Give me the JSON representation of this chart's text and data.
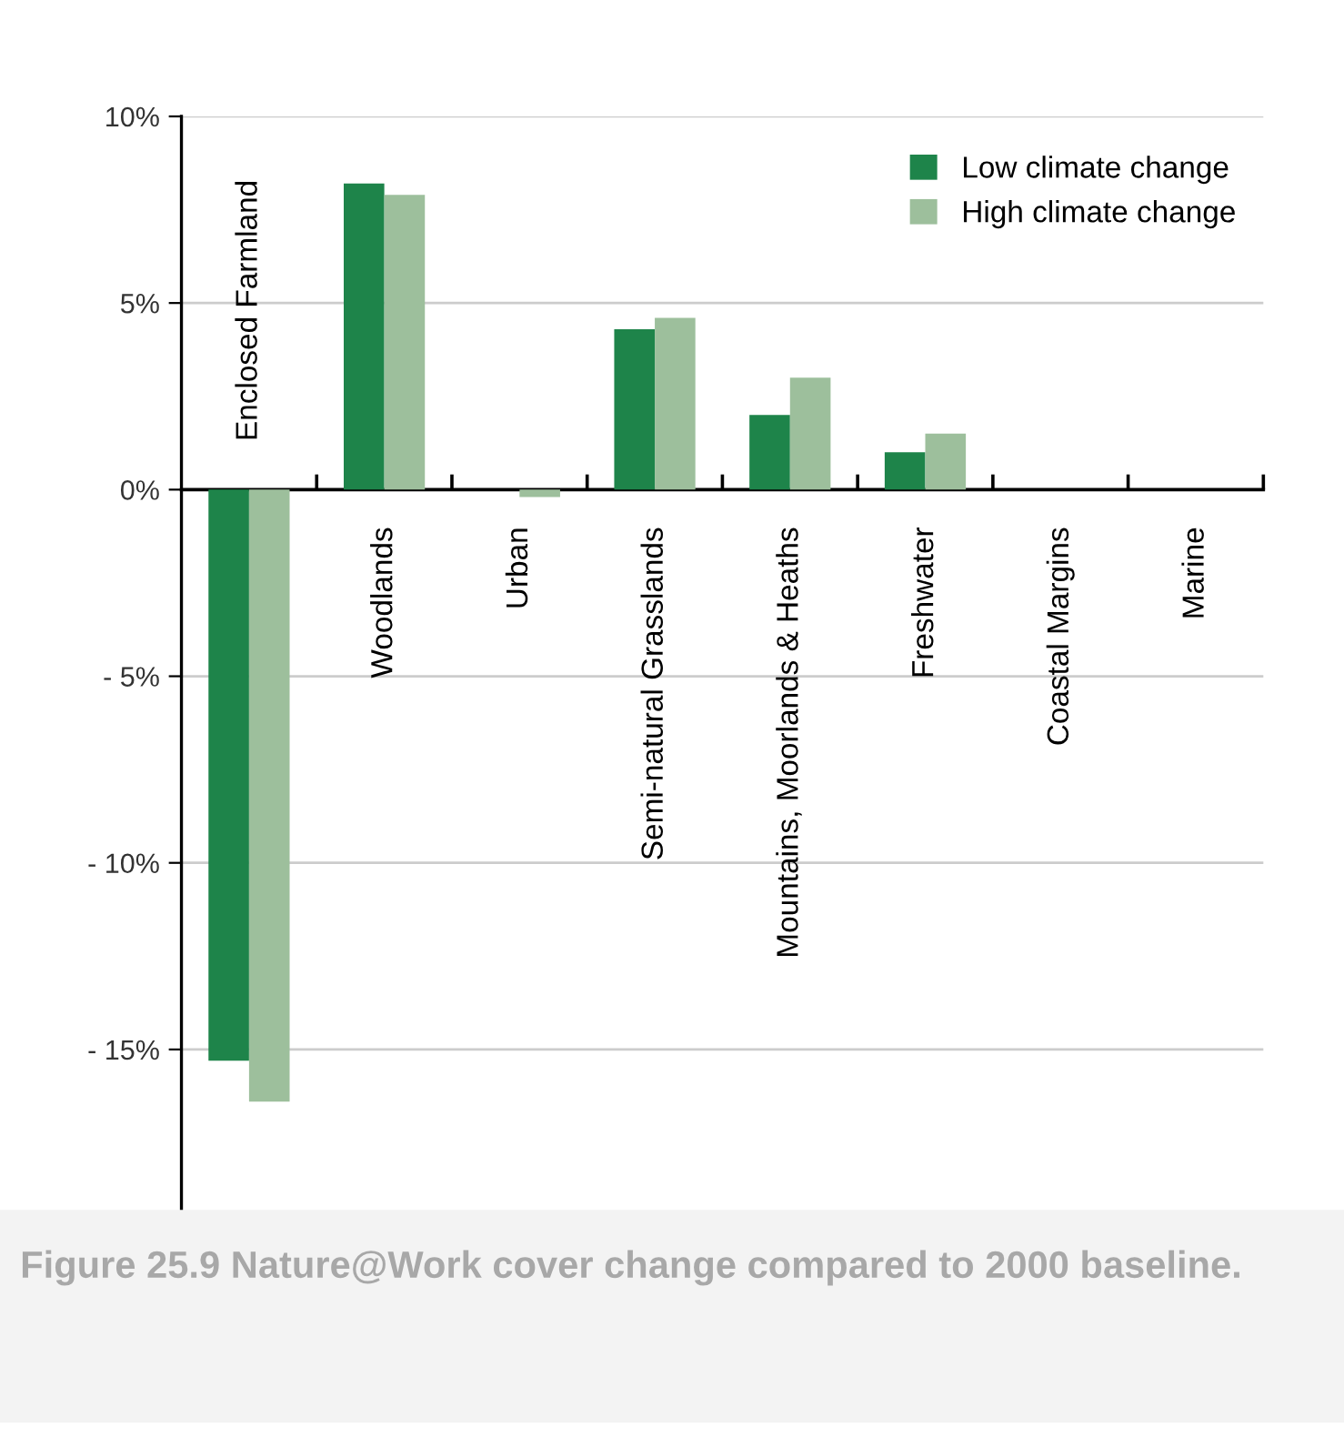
{
  "chart_data": {
    "type": "bar",
    "categories": [
      "Enclosed Farmland",
      "Woodlands",
      "Urban",
      "Semi-natural Grasslands",
      "Mountains, Moorlands & Heaths",
      "Freshwater",
      "Coastal Margins",
      "Marine"
    ],
    "series": [
      {
        "name": "Low climate change",
        "color": "#1e844a",
        "values": [
          -15.3,
          8.2,
          0,
          4.3,
          2.0,
          1.0,
          0,
          0
        ]
      },
      {
        "name": "High climate change",
        "color": "#9dbf9c",
        "values": [
          -16.4,
          7.9,
          -0.2,
          4.6,
          3.0,
          1.5,
          0,
          0
        ]
      }
    ],
    "ylim": [
      -19.3,
      10
    ],
    "yticks": [
      {
        "value": 10,
        "label": "10%"
      },
      {
        "value": 5,
        "label": "5%"
      },
      {
        "value": 0,
        "label": "0%"
      },
      {
        "value": -5,
        "label": "- 5%"
      },
      {
        "value": -10,
        "label": "- 10%"
      },
      {
        "value": -15,
        "label": "- 15%"
      }
    ],
    "grid": "y",
    "legend": "top right",
    "annotations": [
      "Figure 25.9 Nature@Work cover change compared to 2000 baseline."
    ]
  }
}
